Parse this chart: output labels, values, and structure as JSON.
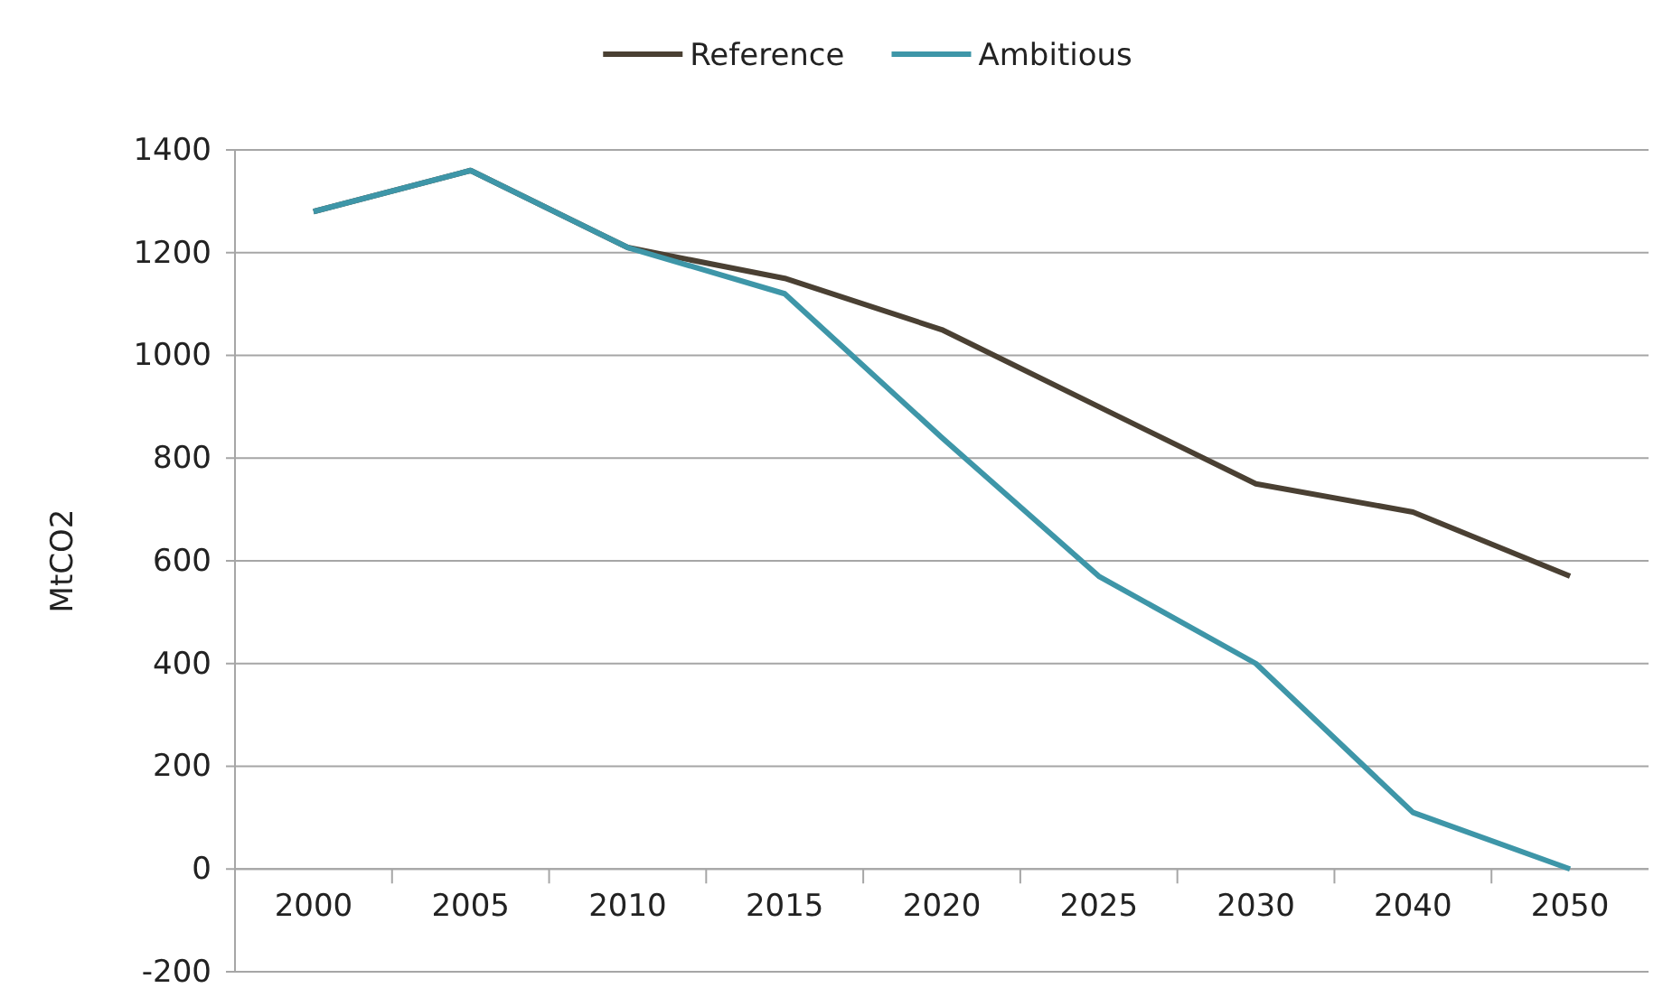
{
  "chart_data": {
    "type": "line",
    "ylabel": "MtCO2",
    "categories": [
      "2000",
      "2005",
      "2010",
      "2015",
      "2020",
      "2025",
      "2030",
      "2040",
      "2050"
    ],
    "series": [
      {
        "name": "Reference",
        "color": "#4a4033",
        "values": [
          1280,
          1360,
          1210,
          1150,
          1050,
          900,
          750,
          695,
          570
        ]
      },
      {
        "name": "Ambitious",
        "color": "#3e96a8",
        "values": [
          1280,
          1360,
          1210,
          1120,
          840,
          570,
          400,
          110,
          0
        ]
      }
    ],
    "ylim": [
      -200,
      1400
    ],
    "yticks": [
      -200,
      0,
      200,
      400,
      600,
      800,
      1000,
      1200,
      1400
    ],
    "grid": "y",
    "legend": "top",
    "marker": "none",
    "line_style": "solid"
  }
}
